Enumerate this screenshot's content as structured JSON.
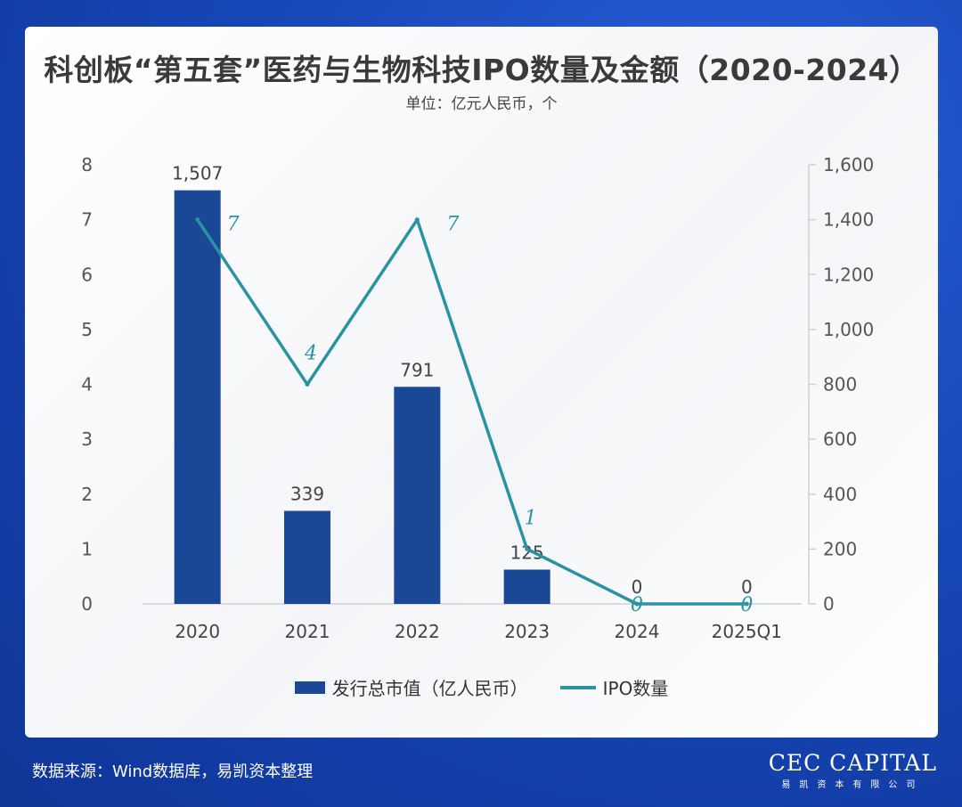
{
  "header": {
    "title": "科创板“第五套”医药与生物科技IPO数量及金额（2020-2024）",
    "subtitle": "单位：亿元人民币，个"
  },
  "chart_data": {
    "type": "bar",
    "categories": [
      "2020",
      "2021",
      "2022",
      "2023",
      "2024",
      "2025Q1"
    ],
    "series": [
      {
        "name": "发行总市值（亿人民币）",
        "type": "bar",
        "axis": "right",
        "values": [
          1507,
          339,
          791,
          125,
          0,
          0
        ],
        "labels": [
          "1,507",
          "339",
          "791",
          "125",
          "0",
          "0"
        ],
        "color": "#1a4796"
      },
      {
        "name": "IPO数量",
        "type": "line",
        "axis": "left",
        "values": [
          7,
          4,
          7,
          1,
          0,
          0
        ],
        "labels": [
          "7",
          "4",
          "7",
          "1",
          "0",
          "0"
        ],
        "color": "#2a93a3"
      }
    ],
    "y_left": {
      "min": 0,
      "max": 8,
      "ticks": [
        "0",
        "1",
        "2",
        "3",
        "4",
        "5",
        "6",
        "7",
        "8"
      ]
    },
    "y_right": {
      "min": 0,
      "max": 1600,
      "ticks": [
        "0",
        "200",
        "400",
        "600",
        "800",
        "1,000",
        "1,200",
        "1,400",
        "1,600"
      ]
    },
    "grid": false,
    "legend_position": "bottom"
  },
  "legend": {
    "bar_label": "发行总市值（亿人民币）",
    "line_label": "IPO数量"
  },
  "footer": {
    "source": "数据来源：Wind数据库，易凯资本整理",
    "logo_text": "CEC CAPITAL",
    "logo_sub": "易凯资本有限公司"
  }
}
